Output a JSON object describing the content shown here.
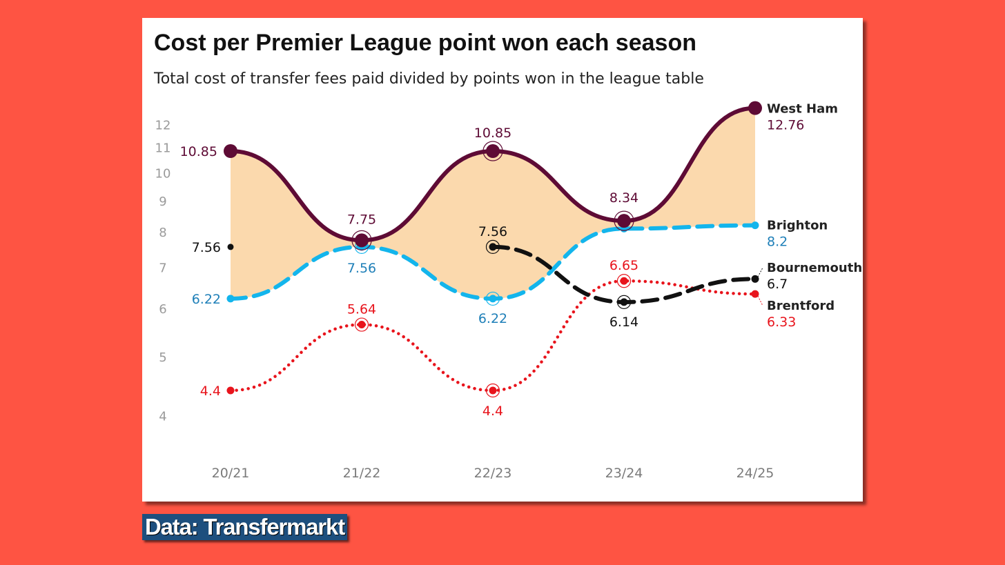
{
  "chart_data": {
    "type": "line",
    "title": "Cost per Premier League point won each season",
    "subtitle": "Total cost of transfer fees paid divided by points won in the league table",
    "categories": [
      "20/21",
      "21/22",
      "22/23",
      "23/24",
      "24/25"
    ],
    "y_ticks": [
      "4",
      "5",
      "6",
      "7",
      "8",
      "9",
      "10",
      "11",
      "12"
    ],
    "ylim": [
      3.6,
      13.0
    ],
    "y_scale": "log",
    "grid": false,
    "shaded_band": {
      "between": [
        "West Ham",
        "Brighton"
      ],
      "color": "#fbd9ad"
    },
    "series": [
      {
        "name": "West Ham",
        "color": "#5e0b35",
        "style": "solid",
        "values": [
          10.85,
          7.75,
          10.85,
          8.34,
          12.76
        ],
        "labels": [
          "10.85",
          "7.75",
          "10.85",
          "8.34",
          "12.76"
        ]
      },
      {
        "name": "Brighton",
        "color": "#13b5ec",
        "style": "dashed",
        "label_color": "#1e7fb8",
        "values": [
          6.22,
          7.56,
          6.22,
          8.1,
          8.2
        ],
        "labels": [
          "6.22",
          "7.56",
          "6.22",
          "",
          "8.2"
        ]
      },
      {
        "name": "Bournemouth",
        "color": "#111111",
        "style": "dashed",
        "values": [
          7.56,
          null,
          7.56,
          6.14,
          6.7
        ],
        "labels": [
          "7.56",
          "",
          "7.56",
          "6.14",
          "6.7"
        ]
      },
      {
        "name": "Brentford",
        "color": "#e8141c",
        "style": "dotted",
        "values": [
          4.4,
          5.64,
          4.4,
          6.65,
          6.33
        ],
        "labels": [
          "4.4",
          "5.64",
          "4.4",
          "6.65",
          "6.33"
        ]
      }
    ]
  },
  "source": "Data: Transfermarkt"
}
